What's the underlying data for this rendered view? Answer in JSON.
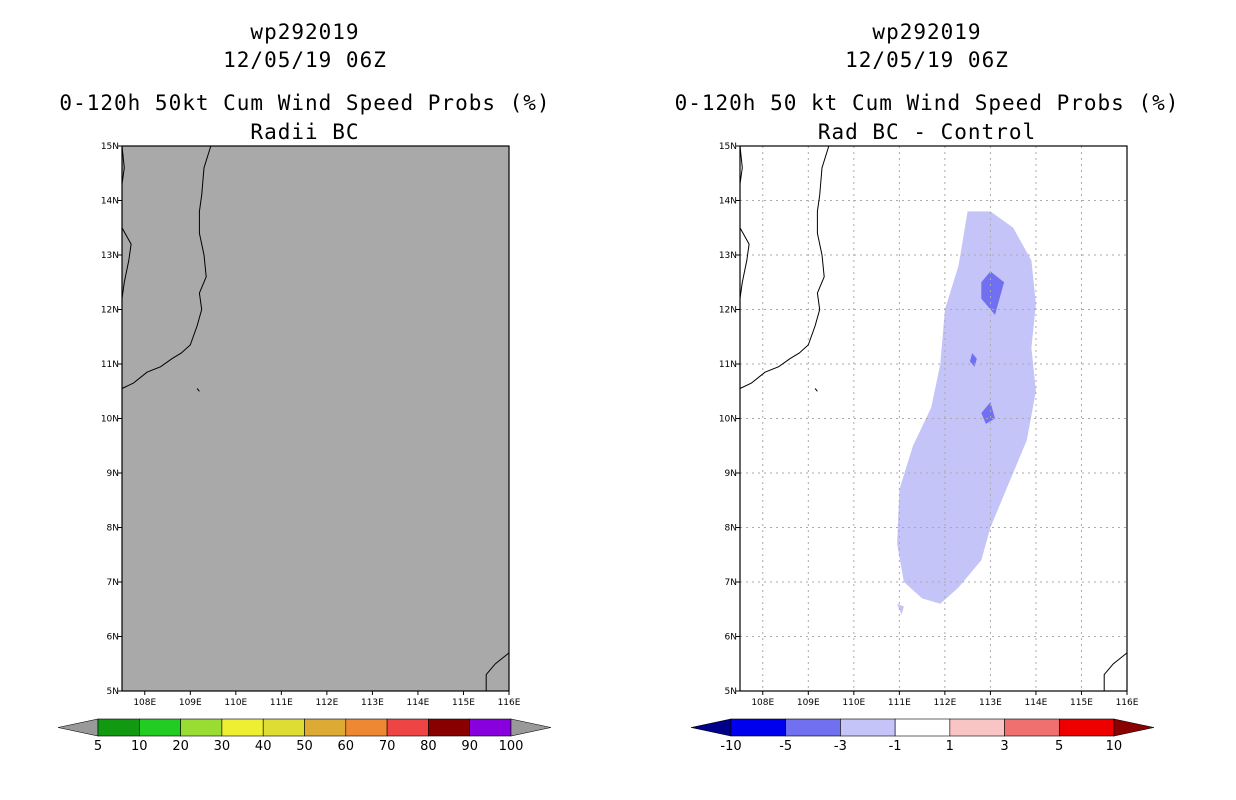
{
  "left_panel": {
    "title_line1": "wp292019",
    "title_line2": "12/05/19 06Z",
    "title_line3": "0-120h 50kt Cum Wind Speed Probs (%)",
    "title_line4": "Radii BC",
    "fill_color": "#a9a9a9",
    "colorbar": {
      "colors": [
        "#119911",
        "#22cc22",
        "#99dd33",
        "#eeee33",
        "#dddd33",
        "#ddaa33",
        "#ee8833",
        "#ee4444",
        "#880000",
        "#8800dd"
      ],
      "end_colors": [
        "#999999",
        "#999999"
      ],
      "labels": [
        "5",
        "10",
        "20",
        "30",
        "40",
        "50",
        "60",
        "70",
        "80",
        "90",
        "100"
      ]
    }
  },
  "right_panel": {
    "title_line1": "wp292019",
    "title_line2": "12/05/19 06Z",
    "title_line3": "0-120h 50 kt Cum Wind Speed Probs (%)",
    "title_line4": "Rad BC - Control",
    "colorbar": {
      "colors": [
        "#0000ee",
        "#7070f0",
        "#c4c4f8",
        "#ffffff",
        "#f8c4c4",
        "#f07070",
        "#ee0000"
      ],
      "end_colors": [
        "#00008b",
        "#8b0000"
      ],
      "labels": [
        "-10",
        "-5",
        "-3",
        "-1",
        "1",
        "3",
        "5",
        "10"
      ]
    }
  },
  "chart_data": [
    {
      "type": "heatmap",
      "title": "0-120h 50kt Cum Wind Speed Probs (%)",
      "subtitle": "Radii BC",
      "storm": "wp292019",
      "time": "12/05/19 06Z",
      "xlabel": "",
      "ylabel": "",
      "xlim": [
        107.5,
        116
      ],
      "ylim": [
        5,
        15
      ],
      "x_ticks": [
        108,
        109,
        110,
        111,
        112,
        113,
        114,
        115,
        116
      ],
      "x_tick_labels": [
        "108E",
        "109E",
        "110E",
        "111E",
        "112E",
        "113E",
        "114E",
        "115E",
        "116E"
      ],
      "y_ticks": [
        5,
        6,
        7,
        8,
        9,
        10,
        11,
        12,
        13,
        14,
        15
      ],
      "y_tick_labels": [
        "5N",
        "6N",
        "7N",
        "8N",
        "9N",
        "10N",
        "11N",
        "12N",
        "13N",
        "14N",
        "15N"
      ],
      "grid": false,
      "note": "entire domain below lowest shaded level (uniform gray)"
    },
    {
      "type": "heatmap",
      "title": "0-120h 50 kt Cum Wind Speed Probs (%)",
      "subtitle": "Rad BC - Control",
      "storm": "wp292019",
      "time": "12/05/19 06Z",
      "xlabel": "",
      "ylabel": "",
      "xlim": [
        107.5,
        116
      ],
      "ylim": [
        5,
        15
      ],
      "x_ticks": [
        108,
        109,
        110,
        111,
        112,
        113,
        114,
        115,
        116
      ],
      "x_tick_labels": [
        "108E",
        "109E",
        "110E",
        "111E",
        "112E",
        "113E",
        "114E",
        "115E",
        "116E"
      ],
      "y_ticks": [
        5,
        6,
        7,
        8,
        9,
        10,
        11,
        12,
        13,
        14,
        15
      ],
      "y_tick_labels": [
        "5N",
        "6N",
        "7N",
        "8N",
        "9N",
        "10N",
        "11N",
        "12N",
        "13N",
        "14N",
        "15N"
      ],
      "grid": true,
      "contours": [
        {
          "level": "-3 to -1",
          "color": "#c4c4f8",
          "lon_lat": [
            [
              112.5,
              13.8
            ],
            [
              113,
              13.8
            ],
            [
              113.5,
              13.5
            ],
            [
              113.9,
              12.9
            ],
            [
              114,
              12.1
            ],
            [
              113.9,
              11.3
            ],
            [
              114,
              10.5
            ],
            [
              113.8,
              9.6
            ],
            [
              113.4,
              8.8
            ],
            [
              113,
              8
            ],
            [
              112.8,
              7.4
            ],
            [
              112.3,
              6.9
            ],
            [
              111.9,
              6.6
            ],
            [
              111.5,
              6.7
            ],
            [
              111.1,
              7
            ],
            [
              110.95,
              7.7
            ],
            [
              111,
              8.7
            ],
            [
              111.3,
              9.5
            ],
            [
              111.7,
              10.2
            ],
            [
              111.9,
              11
            ],
            [
              112,
              12
            ],
            [
              112.3,
              12.8
            ],
            [
              112.5,
              13.8
            ]
          ]
        },
        {
          "level": "-3 to -1",
          "color": "#c4c4f8",
          "lon_lat": [
            [
              110.95,
              6.6
            ],
            [
              111.05,
              6.4
            ],
            [
              111.1,
              6.55
            ],
            [
              110.95,
              6.6
            ]
          ]
        },
        {
          "level": "-5 to -3",
          "color": "#7070f0",
          "lon_lat": [
            [
              112.8,
              12.5
            ],
            [
              113,
              12.7
            ],
            [
              113.3,
              12.5
            ],
            [
              113.1,
              11.9
            ],
            [
              112.8,
              12.2
            ],
            [
              112.8,
              12.5
            ]
          ]
        },
        {
          "level": "-5 to -3",
          "color": "#7070f0",
          "lon_lat": [
            [
              112.6,
              11.2
            ],
            [
              112.7,
              11.1
            ],
            [
              112.65,
              10.95
            ],
            [
              112.55,
              11.05
            ],
            [
              112.6,
              11.2
            ]
          ]
        },
        {
          "level": "-5 to -3",
          "color": "#7070f0",
          "lon_lat": [
            [
              113,
              10.3
            ],
            [
              113.1,
              10
            ],
            [
              112.9,
              9.9
            ],
            [
              112.8,
              10.1
            ],
            [
              113,
              10.3
            ]
          ]
        }
      ]
    }
  ],
  "coastline": {
    "vietnam": [
      [
        109.45,
        15
      ],
      [
        109.3,
        14.6
      ],
      [
        109.25,
        14.1
      ],
      [
        109.2,
        13.8
      ],
      [
        109.2,
        13.4
      ],
      [
        109.3,
        13
      ],
      [
        109.35,
        12.6
      ],
      [
        109.2,
        12.3
      ],
      [
        109.25,
        12
      ],
      [
        109.15,
        11.7
      ],
      [
        109.0,
        11.35
      ],
      [
        108.8,
        11.2
      ],
      [
        108.6,
        11.1
      ],
      [
        108.35,
        10.95
      ],
      [
        108.05,
        10.85
      ],
      [
        107.75,
        10.65
      ],
      [
        107.5,
        10.55
      ]
    ],
    "cambodia": [
      [
        107.5,
        15
      ],
      [
        107.55,
        14.6
      ],
      [
        107.5,
        14.3
      ],
      [
        107.5,
        13.5
      ],
      [
        107.7,
        13.2
      ],
      [
        107.65,
        12.9
      ],
      [
        107.55,
        12.5
      ],
      [
        107.5,
        12.2
      ]
    ],
    "island": [
      [
        109.15,
        10.55
      ],
      [
        109.2,
        10.5
      ]
    ],
    "borneo": [
      [
        115.5,
        5
      ],
      [
        115.5,
        5.3
      ],
      [
        115.7,
        5.5
      ],
      [
        116,
        5.7
      ]
    ]
  }
}
